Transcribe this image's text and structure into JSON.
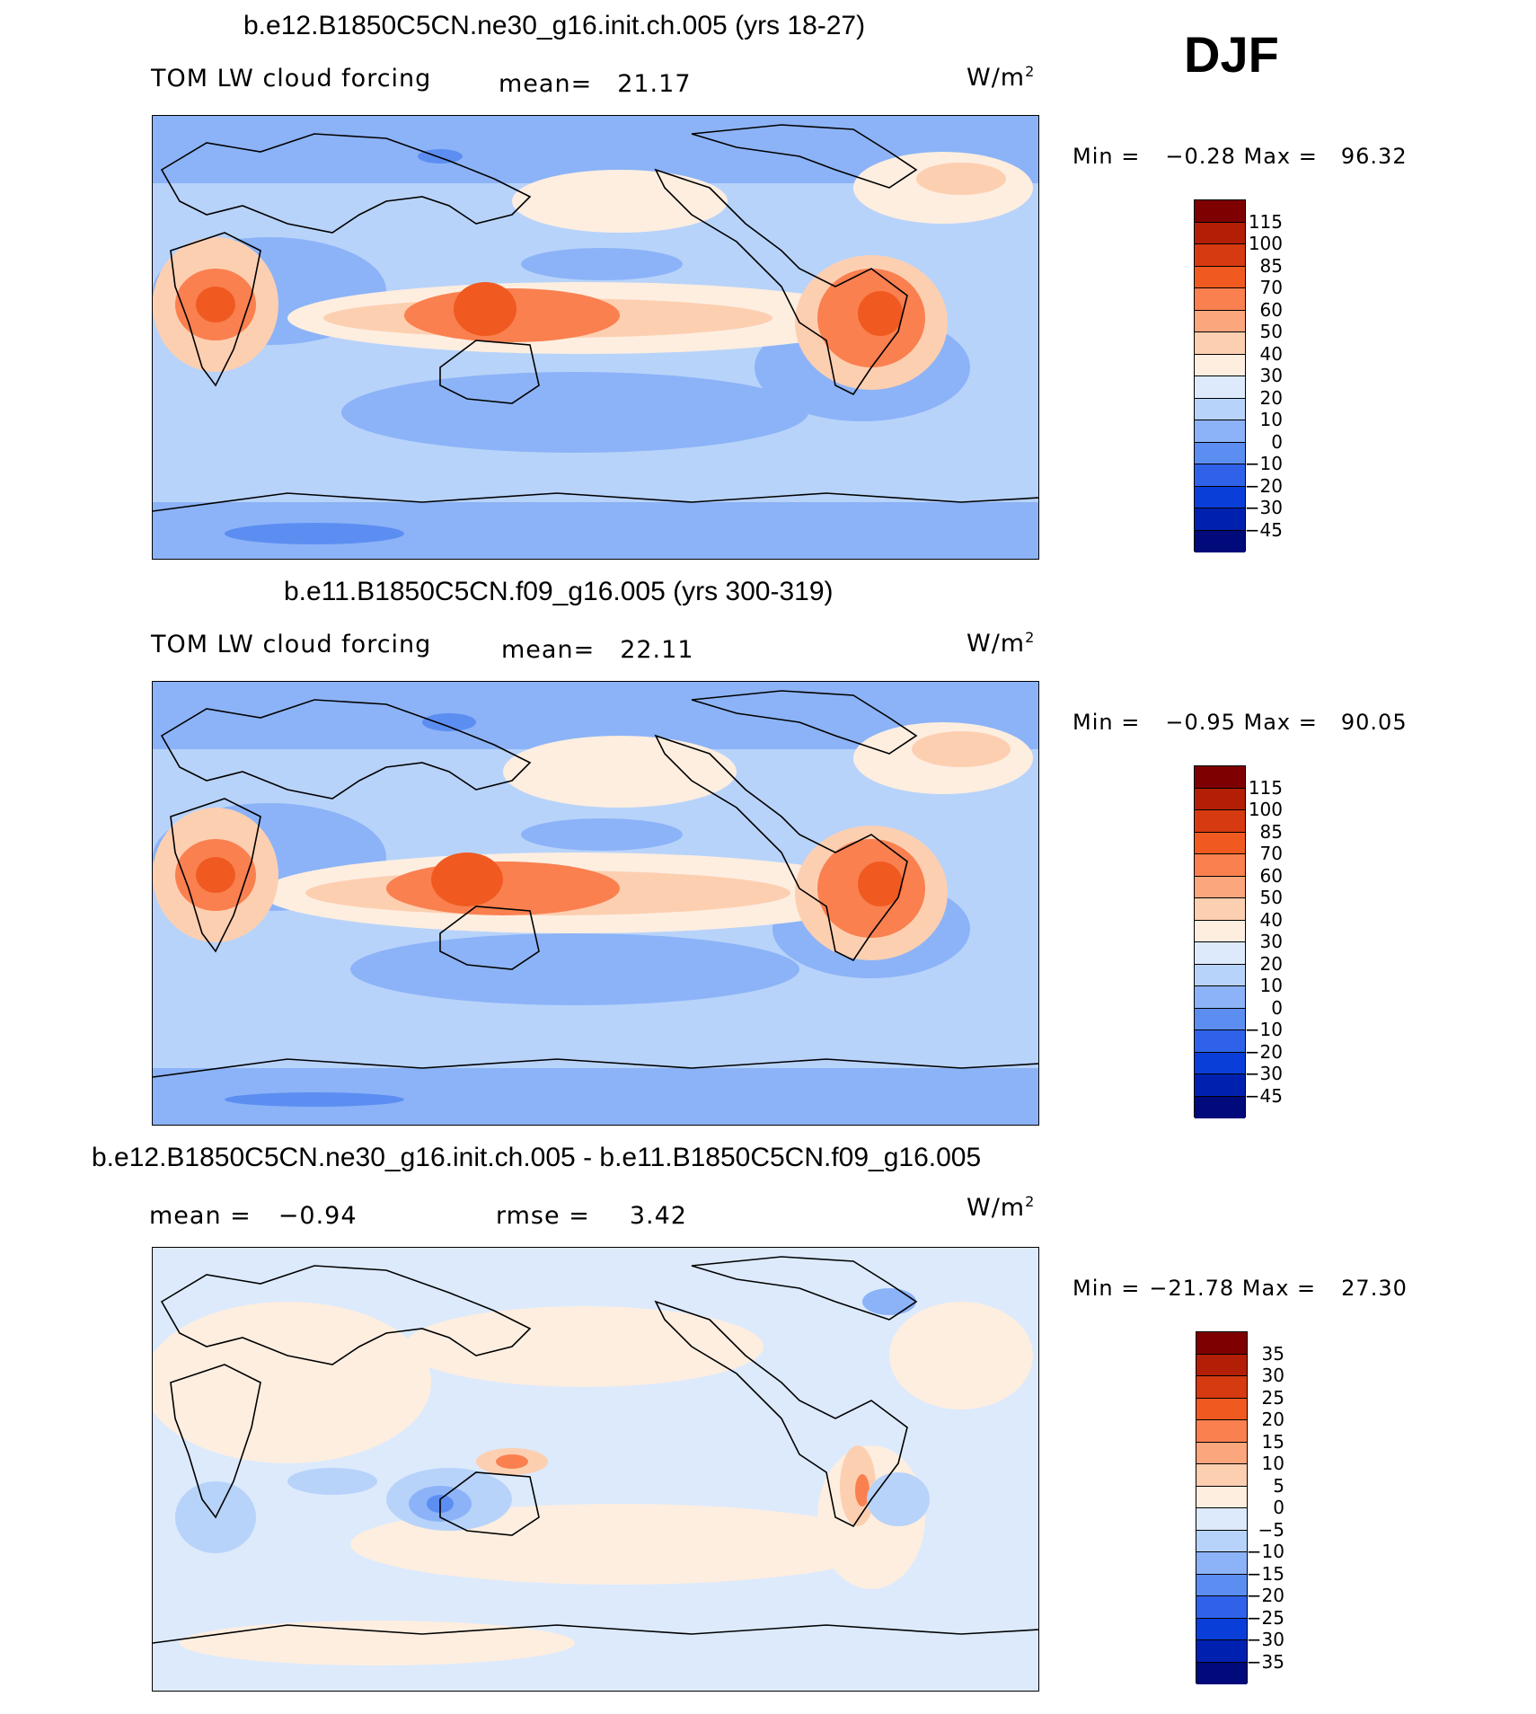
{
  "season": "DJF",
  "units_base": "W/m",
  "units_exp": "2",
  "chart_data": [
    {
      "type": "heatmap",
      "title": "b.e12.B1850C5CN.ne30_g16.init.ch.005 (yrs 18-27)",
      "variable": "TOM LW cloud forcing",
      "mean_label": "mean=",
      "mean_value": "21.17",
      "min_label": "Min =",
      "min_value": "−0.28",
      "max_label": "Max =",
      "max_value": "96.32",
      "levels": [
        "115",
        "100",
        "85",
        "70",
        "60",
        "50",
        "40",
        "30",
        "20",
        "10",
        "0",
        "−10",
        "−20",
        "−30",
        "−45"
      ],
      "colors": [
        "#7f0000",
        "#b21f06",
        "#d63a10",
        "#f05a20",
        "#fa8050",
        "#fba67d",
        "#fdcfb1",
        "#fdeee0",
        "#dceafc",
        "#b8d3fa",
        "#8cb3f7",
        "#5c8ef2",
        "#2f62e8",
        "#0a3ed9",
        "#0021b0",
        "#000a7a"
      ]
    },
    {
      "type": "heatmap",
      "title": "b.e11.B1850C5CN.f09_g16.005 (yrs 300-319)",
      "variable": "TOM LW cloud forcing",
      "mean_label": "mean=",
      "mean_value": "22.11",
      "min_label": "Min =",
      "min_value": "−0.95",
      "max_label": "Max =",
      "max_value": "90.05",
      "levels": [
        "115",
        "100",
        "85",
        "70",
        "60",
        "50",
        "40",
        "30",
        "20",
        "10",
        "0",
        "−10",
        "−20",
        "−30",
        "−45"
      ],
      "colors": [
        "#7f0000",
        "#b21f06",
        "#d63a10",
        "#f05a20",
        "#fa8050",
        "#fba67d",
        "#fdcfb1",
        "#fdeee0",
        "#dceafc",
        "#b8d3fa",
        "#8cb3f7",
        "#5c8ef2",
        "#2f62e8",
        "#0a3ed9",
        "#0021b0",
        "#000a7a"
      ]
    },
    {
      "type": "heatmap",
      "title": "b.e12.B1850C5CN.ne30_g16.init.ch.005 - b.e11.B1850C5CN.f09_g16.005",
      "mean_label": "mean =",
      "mean_value": "−0.94",
      "rmse_label": "rmse =",
      "rmse_value": "3.42",
      "min_label": "Min =",
      "min_value": "−21.78",
      "max_label": "Max =",
      "max_value": "27.30",
      "levels": [
        "35",
        "30",
        "25",
        "20",
        "15",
        "10",
        "5",
        "0",
        "−5",
        "−10",
        "−15",
        "−20",
        "−25",
        "−30",
        "−35"
      ],
      "colors": [
        "#7f0000",
        "#b21f06",
        "#d63a10",
        "#f05a20",
        "#fa8050",
        "#fba67d",
        "#fdcfb1",
        "#fdeee0",
        "#dceafc",
        "#b8d3fa",
        "#8cb3f7",
        "#5c8ef2",
        "#2f62e8",
        "#0a3ed9",
        "#0021b0",
        "#000a7a"
      ]
    }
  ]
}
